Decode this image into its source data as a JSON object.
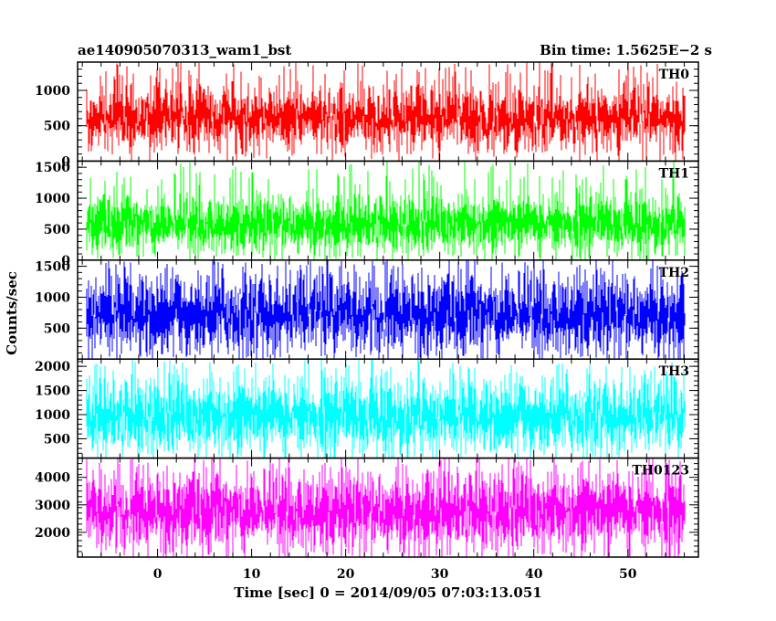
{
  "chart_data": {
    "type": "line",
    "title_left": "ae140905070313_wam1_bst",
    "title_right": "Bin time: 1.5625E−2 s",
    "xlabel": "Time [sec] 0 = 2014/09/05 07:03:13.051",
    "ylabel": "Counts/sec",
    "xlim": [
      -8.5,
      57.5
    ],
    "x_ticks": [
      0,
      10,
      20,
      30,
      40,
      50
    ],
    "x_range_data": [
      -7.5,
      56
    ],
    "bin_time": 0.015625,
    "panels": [
      {
        "name": "TH0",
        "color": "#ff0000",
        "ylim": [
          0,
          1400
        ],
        "yticks": [
          0,
          500,
          1000
        ],
        "mean": 600,
        "noise": 130,
        "low_floor": 160,
        "spike_max": 1400
      },
      {
        "name": "TH1",
        "color": "#00ff00",
        "ylim": [
          0,
          1600
        ],
        "yticks": [
          0,
          500,
          1000,
          1500
        ],
        "mean": 580,
        "noise": 140,
        "low_floor": 120,
        "spike_max": 1600
      },
      {
        "name": "TH2",
        "color": "#0000ff",
        "ylim": [
          0,
          1600
        ],
        "yticks": [
          500,
          1000,
          1500
        ],
        "mean": 720,
        "noise": 190,
        "low_floor": 100,
        "spike_max": 1600
      },
      {
        "name": "TH3",
        "color": "#00ffff",
        "ylim": [
          100,
          2150
        ],
        "yticks": [
          500,
          1000,
          1500,
          2000
        ],
        "mean": 950,
        "noise": 230,
        "low_floor": 330,
        "spike_max": 2100
      },
      {
        "name": "TH0123",
        "color": "#ff00ff",
        "ylim": [
          1100,
          4700
        ],
        "yticks": [
          2000,
          3000,
          4000
        ],
        "mean": 2750,
        "noise": 420,
        "low_floor": 1300,
        "spike_max": 4700
      }
    ]
  }
}
